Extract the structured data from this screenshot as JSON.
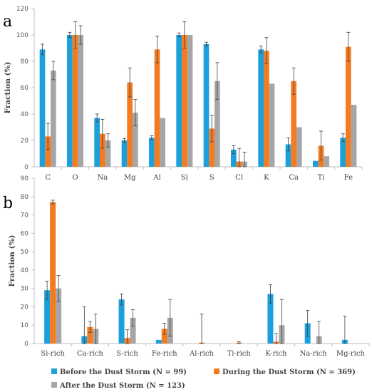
{
  "colors": {
    "before": "#1ca0db",
    "during": "#f47b20",
    "after": "#a6a6a6",
    "axis": "#bfbfbf",
    "errorbar": "#404040"
  },
  "legend": {
    "before": "Before the Dust Storm (N = 99)",
    "during": "During the Dust Storm (N = 369)",
    "after": "After the Dust Storm (N = 123)"
  },
  "chart_data": [
    {
      "panel": "a",
      "type": "bar",
      "ylabel": "Fraction (%)",
      "ylim": [
        0,
        120
      ],
      "yticks": [
        0,
        20,
        40,
        60,
        80,
        100,
        120
      ],
      "categories": [
        "C",
        "O",
        "Na",
        "Mg",
        "Al",
        "Si",
        "S",
        "Cl",
        "K",
        "Ca",
        "Ti",
        "Fe"
      ],
      "series": [
        {
          "name": "Before the Dust Storm (N = 99)",
          "key": "before",
          "values": [
            89,
            100,
            37,
            20,
            22,
            100,
            93,
            13,
            89,
            17,
            4.5,
            22
          ],
          "errors": [
            4,
            2,
            3,
            1.5,
            1.5,
            1.5,
            1.5,
            3,
            2.5,
            5,
            0,
            3
          ]
        },
        {
          "name": "During the Dust Storm (N = 369)",
          "key": "during",
          "values": [
            23,
            100,
            25,
            64,
            89,
            100,
            29,
            4,
            88,
            65,
            16,
            91
          ],
          "errors": [
            10,
            10,
            11,
            11,
            10,
            10,
            10,
            10,
            10,
            10,
            11,
            11
          ]
        },
        {
          "name": "After the Dust Storm (N = 123)",
          "key": "after",
          "values": [
            73,
            100,
            20,
            41,
            37,
            100,
            65,
            4,
            63,
            30,
            8,
            47
          ],
          "errors": [
            7,
            7,
            5,
            10,
            0,
            0,
            14,
            7,
            0,
            0,
            0,
            0
          ]
        }
      ]
    },
    {
      "panel": "b",
      "type": "bar",
      "ylabel": "Fraction (%)",
      "ylim": [
        0,
        90
      ],
      "yticks": [
        0,
        10,
        20,
        30,
        40,
        50,
        60,
        70,
        80,
        90
      ],
      "categories": [
        "Si-rich",
        "Ca-rich",
        "S-rich",
        "Fe-rich",
        "Al-rich",
        "Ti-rich",
        "K-rich",
        "Na-rich",
        "Mg-rich"
      ],
      "series": [
        {
          "name": "Before the Dust Storm (N = 99)",
          "key": "before",
          "values": [
            29,
            4,
            24,
            2,
            0,
            0,
            27,
            11,
            2
          ],
          "errors": [
            5,
            16,
            3,
            0,
            0,
            0,
            5,
            7,
            13
          ]
        },
        {
          "name": "During the Dust Storm (N = 369)",
          "key": "during",
          "values": [
            77,
            9,
            3,
            8,
            0.5,
            0.5,
            1,
            0,
            0
          ],
          "errors": [
            1,
            3,
            4.5,
            3,
            15.5,
            0.5,
            4.5,
            0,
            0
          ]
        },
        {
          "name": "After the Dust Storm (N = 123)",
          "key": "after",
          "values": [
            30,
            8,
            14,
            14,
            0,
            0,
            10,
            4,
            0
          ],
          "errors": [
            7,
            8,
            4.5,
            10,
            0,
            0,
            14,
            8,
            0
          ]
        }
      ]
    }
  ]
}
